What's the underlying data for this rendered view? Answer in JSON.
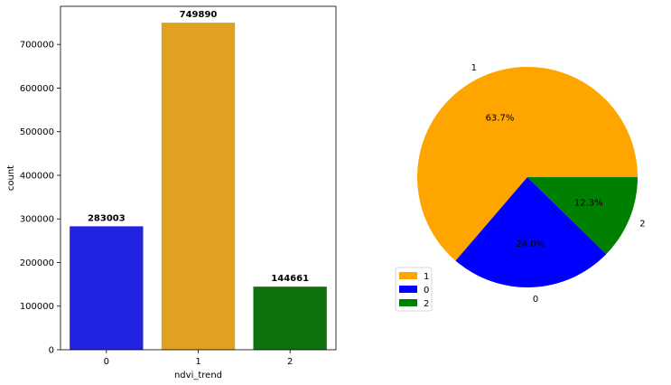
{
  "chart_data": [
    {
      "type": "bar",
      "xlabel": "ndvi_trend",
      "ylabel": "count",
      "categories": [
        "0",
        "1",
        "2"
      ],
      "values": [
        283003,
        749890,
        144661
      ],
      "colors": [
        "#2222e2",
        "#e0a020",
        "#0d720d"
      ],
      "value_labels": [
        "283003",
        "749890",
        "144661"
      ],
      "ylim": [
        0,
        787384
      ],
      "yticks": [
        0,
        100000,
        200000,
        300000,
        400000,
        500000,
        600000,
        700000
      ],
      "ytick_labels": [
        "0",
        "100000",
        "200000",
        "300000",
        "400000",
        "500000",
        "600000",
        "700000"
      ],
      "grid": false
    },
    {
      "type": "pie",
      "labels": [
        "1",
        "0",
        "2"
      ],
      "values": [
        63.7,
        24.0,
        12.3
      ],
      "pct_labels": [
        "63.7%",
        "24.0%",
        "12.3%"
      ],
      "colors": [
        "#ffa500",
        "#0000ff",
        "#008000"
      ],
      "legend": [
        "1",
        "0",
        "2"
      ],
      "legend_position": "lower-left"
    }
  ]
}
